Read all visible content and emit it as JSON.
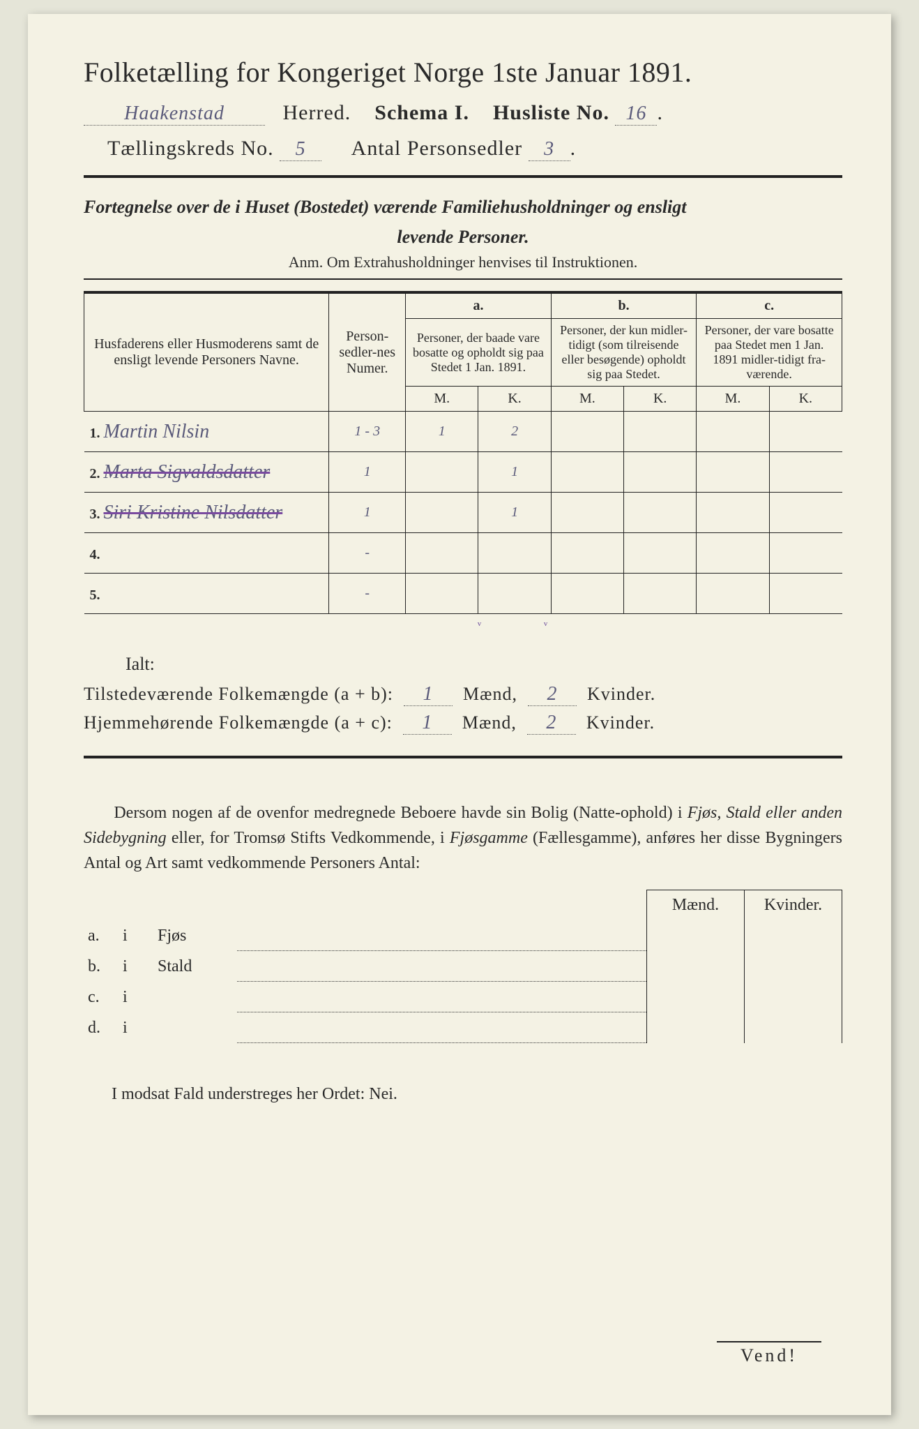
{
  "colors": {
    "page_bg": "#f4f2e4",
    "outer_bg": "#e5e5d8",
    "ink": "#2a2a2a",
    "handwriting": "#5a5a7a",
    "strike": "#7a4aa0",
    "rule": "#222222",
    "dotted": "#555555"
  },
  "typography": {
    "title_size_pt": 40,
    "line_size_pt": 30,
    "subtitle_size_pt": 26,
    "body_size_pt": 24,
    "table_size_pt": 20,
    "hand_size_pt": 28,
    "family_print": "Georgia",
    "family_hand": "Brush Script MT"
  },
  "header": {
    "title": "Folketælling for Kongeriget Norge 1ste Januar 1891.",
    "herred_value": "Haakenstad",
    "herred_label": "Herred.",
    "schema_label": "Schema I.",
    "husliste_label": "Husliste No.",
    "husliste_value": "16",
    "kreds_label": "Tællingskreds No.",
    "kreds_value": "5",
    "antal_label": "Antal Personsedler",
    "antal_value": "3"
  },
  "subtitle": {
    "line1": "Fortegnelse over de i Huset (Bostedet) værende Familiehusholdninger og ensligt",
    "line2": "levende Personer.",
    "anm": "Anm.   Om Extrahusholdninger henvises til Instruktionen."
  },
  "table": {
    "col_name": "Husfaderens eller Husmoderens samt de ensligt levende Personers Navne.",
    "col_num": "Person-sedler-nes Numer.",
    "grp_a_head": "a.",
    "grp_a": "Personer, der baade vare bosatte og opholdt sig paa Stedet 1 Jan. 1891.",
    "grp_b_head": "b.",
    "grp_b": "Personer, der kun midler-tidigt (som tilreisende eller besøgende) opholdt sig paa Stedet.",
    "grp_c_head": "c.",
    "grp_c": "Personer, der vare bosatte paa Stedet men 1 Jan. 1891 midler-tidigt fra-værende.",
    "m": "M.",
    "k": "K.",
    "rows": [
      {
        "n": "1.",
        "name": "Martin Nilsin",
        "num": "1 - 3",
        "aM": "1",
        "aK": "2",
        "bM": "",
        "bK": "",
        "cM": "",
        "cK": "",
        "struck": false
      },
      {
        "n": "2.",
        "name": "Marta Sigvaldsdatter",
        "num": "1",
        "aM": "",
        "aK": "1",
        "bM": "",
        "bK": "",
        "cM": "",
        "cK": "",
        "struck": true
      },
      {
        "n": "3.",
        "name": "Siri Kristine Nilsdatter",
        "num": "1",
        "aM": "",
        "aK": "1",
        "bM": "",
        "bK": "",
        "cM": "",
        "cK": "",
        "struck": true
      },
      {
        "n": "4.",
        "name": "",
        "num": "-",
        "aM": "",
        "aK": "",
        "bM": "",
        "bK": "",
        "cM": "",
        "cK": "",
        "struck": false
      },
      {
        "n": "5.",
        "name": "",
        "num": "-",
        "aM": "",
        "aK": "",
        "bM": "",
        "bK": "",
        "cM": "",
        "cK": "",
        "struck": false
      }
    ],
    "ticks": {
      "aM": "ᵛ",
      "aK": "ᵛ"
    },
    "ialt": "Ialt:"
  },
  "totals": {
    "line1_label": "Tilstedeværende Folkemængde (a + b):",
    "line2_label": "Hjemmehørende Folkemængde (a + c):",
    "maend": "Mænd,",
    "kvinder": "Kvinder.",
    "ab_m": "1",
    "ab_k": "2",
    "ac_m": "1",
    "ac_k": "2"
  },
  "para": {
    "text1": "Dersom nogen af de ovenfor medregnede Beboere havde sin Bolig (Natte-ophold) i ",
    "em1": "Fjøs, Stald eller anden Sidebygning",
    "text2": " eller, for Tromsø Stifts Vedkommende, i ",
    "em2": "Fjøsgamme",
    "text3": " (Fællesgamme), anføres her disse Bygningers Antal og Art samt vedkommende Personers Antal:"
  },
  "bld": {
    "maend": "Mænd.",
    "kvinder": "Kvinder.",
    "rows": [
      {
        "a": "a.",
        "i": "i",
        "kind": "Fjøs"
      },
      {
        "a": "b.",
        "i": "i",
        "kind": "Stald"
      },
      {
        "a": "c.",
        "i": "i",
        "kind": ""
      },
      {
        "a": "d.",
        "i": "i",
        "kind": ""
      }
    ]
  },
  "modsat": "I modsat Fald  understreges her Ordet: Nei.",
  "vend": "Vend!"
}
